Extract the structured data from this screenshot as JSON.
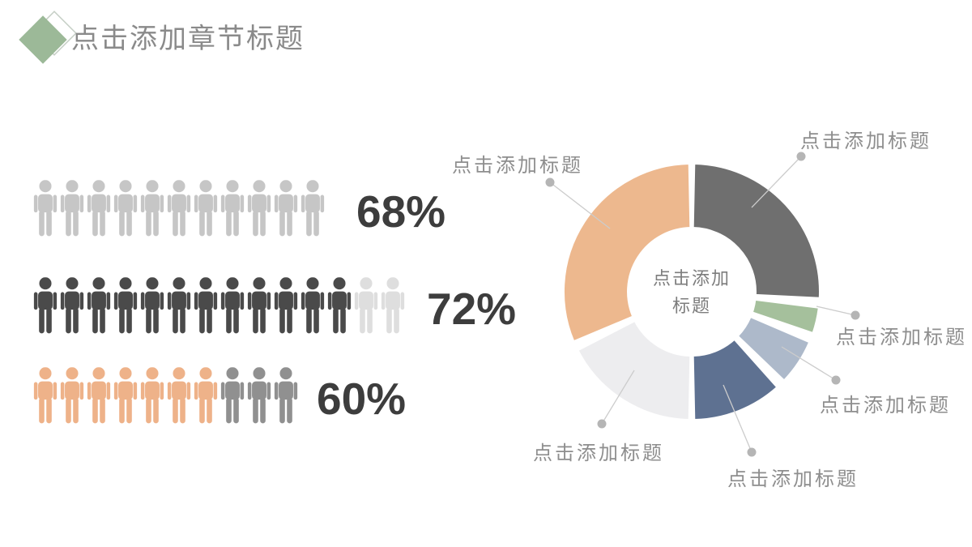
{
  "header": {
    "title": "点击添加章节标题",
    "accent_color": "#9cb998"
  },
  "pictograph": {
    "rows": [
      {
        "label": "68%",
        "icon_total": 11,
        "groups": [
          {
            "count": 11,
            "color": "#c6c6c6"
          }
        ]
      },
      {
        "label": "72%",
        "icon_total": 14,
        "groups": [
          {
            "count": 12,
            "color": "#4a4a4a"
          },
          {
            "count": 2,
            "color": "#dedede"
          }
        ]
      },
      {
        "label": "60%",
        "icon_total": 10,
        "groups": [
          {
            "count": 7,
            "color": "#eeb289"
          },
          {
            "count": 3,
            "color": "#909090"
          }
        ]
      }
    ]
  },
  "chart_data": {
    "type": "pie",
    "subtype": "donut",
    "center_label_lines": [
      "点击添加",
      "标题"
    ],
    "inner_radius_ratio": 0.5,
    "leader_line_color": "#cccccc",
    "leader_dot_color": "#b5b5b5",
    "segments": [
      {
        "name": "slice-dark-gray",
        "label": "点击添加标题",
        "color": "#6f6f6f",
        "start_deg": 0,
        "end_deg": 94,
        "value_percent_est": 27
      },
      {
        "name": "slice-green",
        "label": "点击添加标题",
        "color": "#a5c09c",
        "start_deg": 96,
        "end_deg": 110,
        "value_percent_est": 4
      },
      {
        "name": "slice-light-blue",
        "label": "点击添加标题",
        "color": "#adb9ca",
        "start_deg": 112,
        "end_deg": 135,
        "value_percent_est": 6
      },
      {
        "name": "slice-dark-blue",
        "label": "点击添加标题",
        "color": "#5e7191",
        "start_deg": 137,
        "end_deg": 180,
        "value_percent_est": 12
      },
      {
        "name": "slice-light-gray",
        "label": "点击添加标题",
        "color": "#ededef",
        "start_deg": 180,
        "end_deg": 244,
        "value_percent_est": 18
      },
      {
        "name": "slice-orange",
        "label": "点击添加标题",
        "color": "#edb88e",
        "start_deg": 246,
        "end_deg": 360,
        "value_percent_est": 33
      }
    ]
  }
}
